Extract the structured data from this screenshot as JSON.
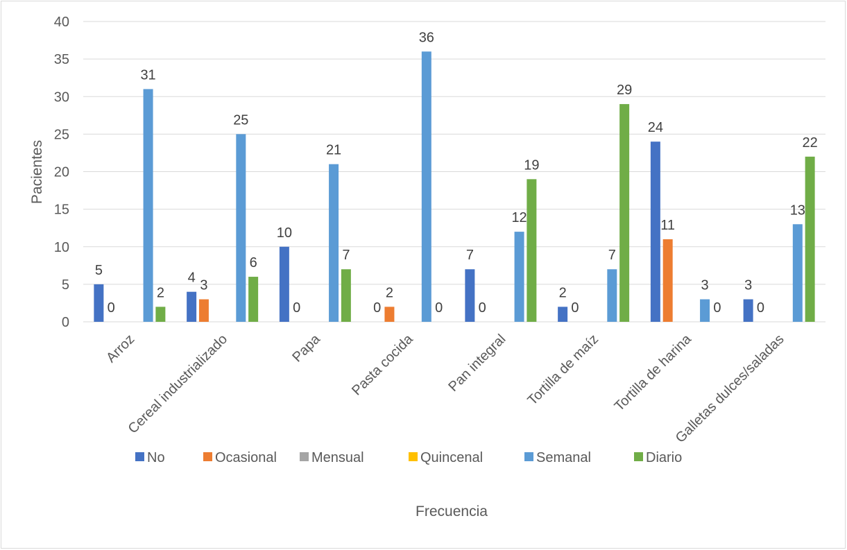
{
  "chart_data": {
    "type": "bar",
    "xlabel": "Frecuencia",
    "ylabel": "Pacientes",
    "ylim": [
      0,
      40
    ],
    "ytick_step": 5,
    "grid": true,
    "legend_position": "bottom",
    "categories": [
      "Arroz",
      "Cereal industrializado",
      "Papa",
      "Pasta cocida",
      "Pan integral",
      "Tortilla de maíz",
      "Tortilla de harina",
      "Galletas dulces/saladas"
    ],
    "series": [
      {
        "name": "No",
        "color": "#4472c4",
        "values": [
          5,
          4,
          10,
          0,
          7,
          2,
          24,
          3
        ]
      },
      {
        "name": "Ocasional",
        "color": "#ed7d31",
        "values": [
          0,
          3,
          0,
          2,
          0,
          0,
          11,
          0
        ]
      },
      {
        "name": "Mensual",
        "color": "#a5a5a5",
        "values": [
          0,
          0,
          0,
          0,
          0,
          0,
          0,
          0
        ]
      },
      {
        "name": "Quincenal",
        "color": "#ffc000",
        "values": [
          0,
          0,
          0,
          0,
          0,
          0,
          0,
          0
        ]
      },
      {
        "name": "Semanal",
        "color": "#5b9bd5",
        "values": [
          31,
          25,
          21,
          36,
          12,
          7,
          3,
          13
        ]
      },
      {
        "name": "Diario",
        "color": "#70ad47",
        "values": [
          2,
          6,
          7,
          0,
          19,
          29,
          0,
          22
        ]
      }
    ]
  }
}
